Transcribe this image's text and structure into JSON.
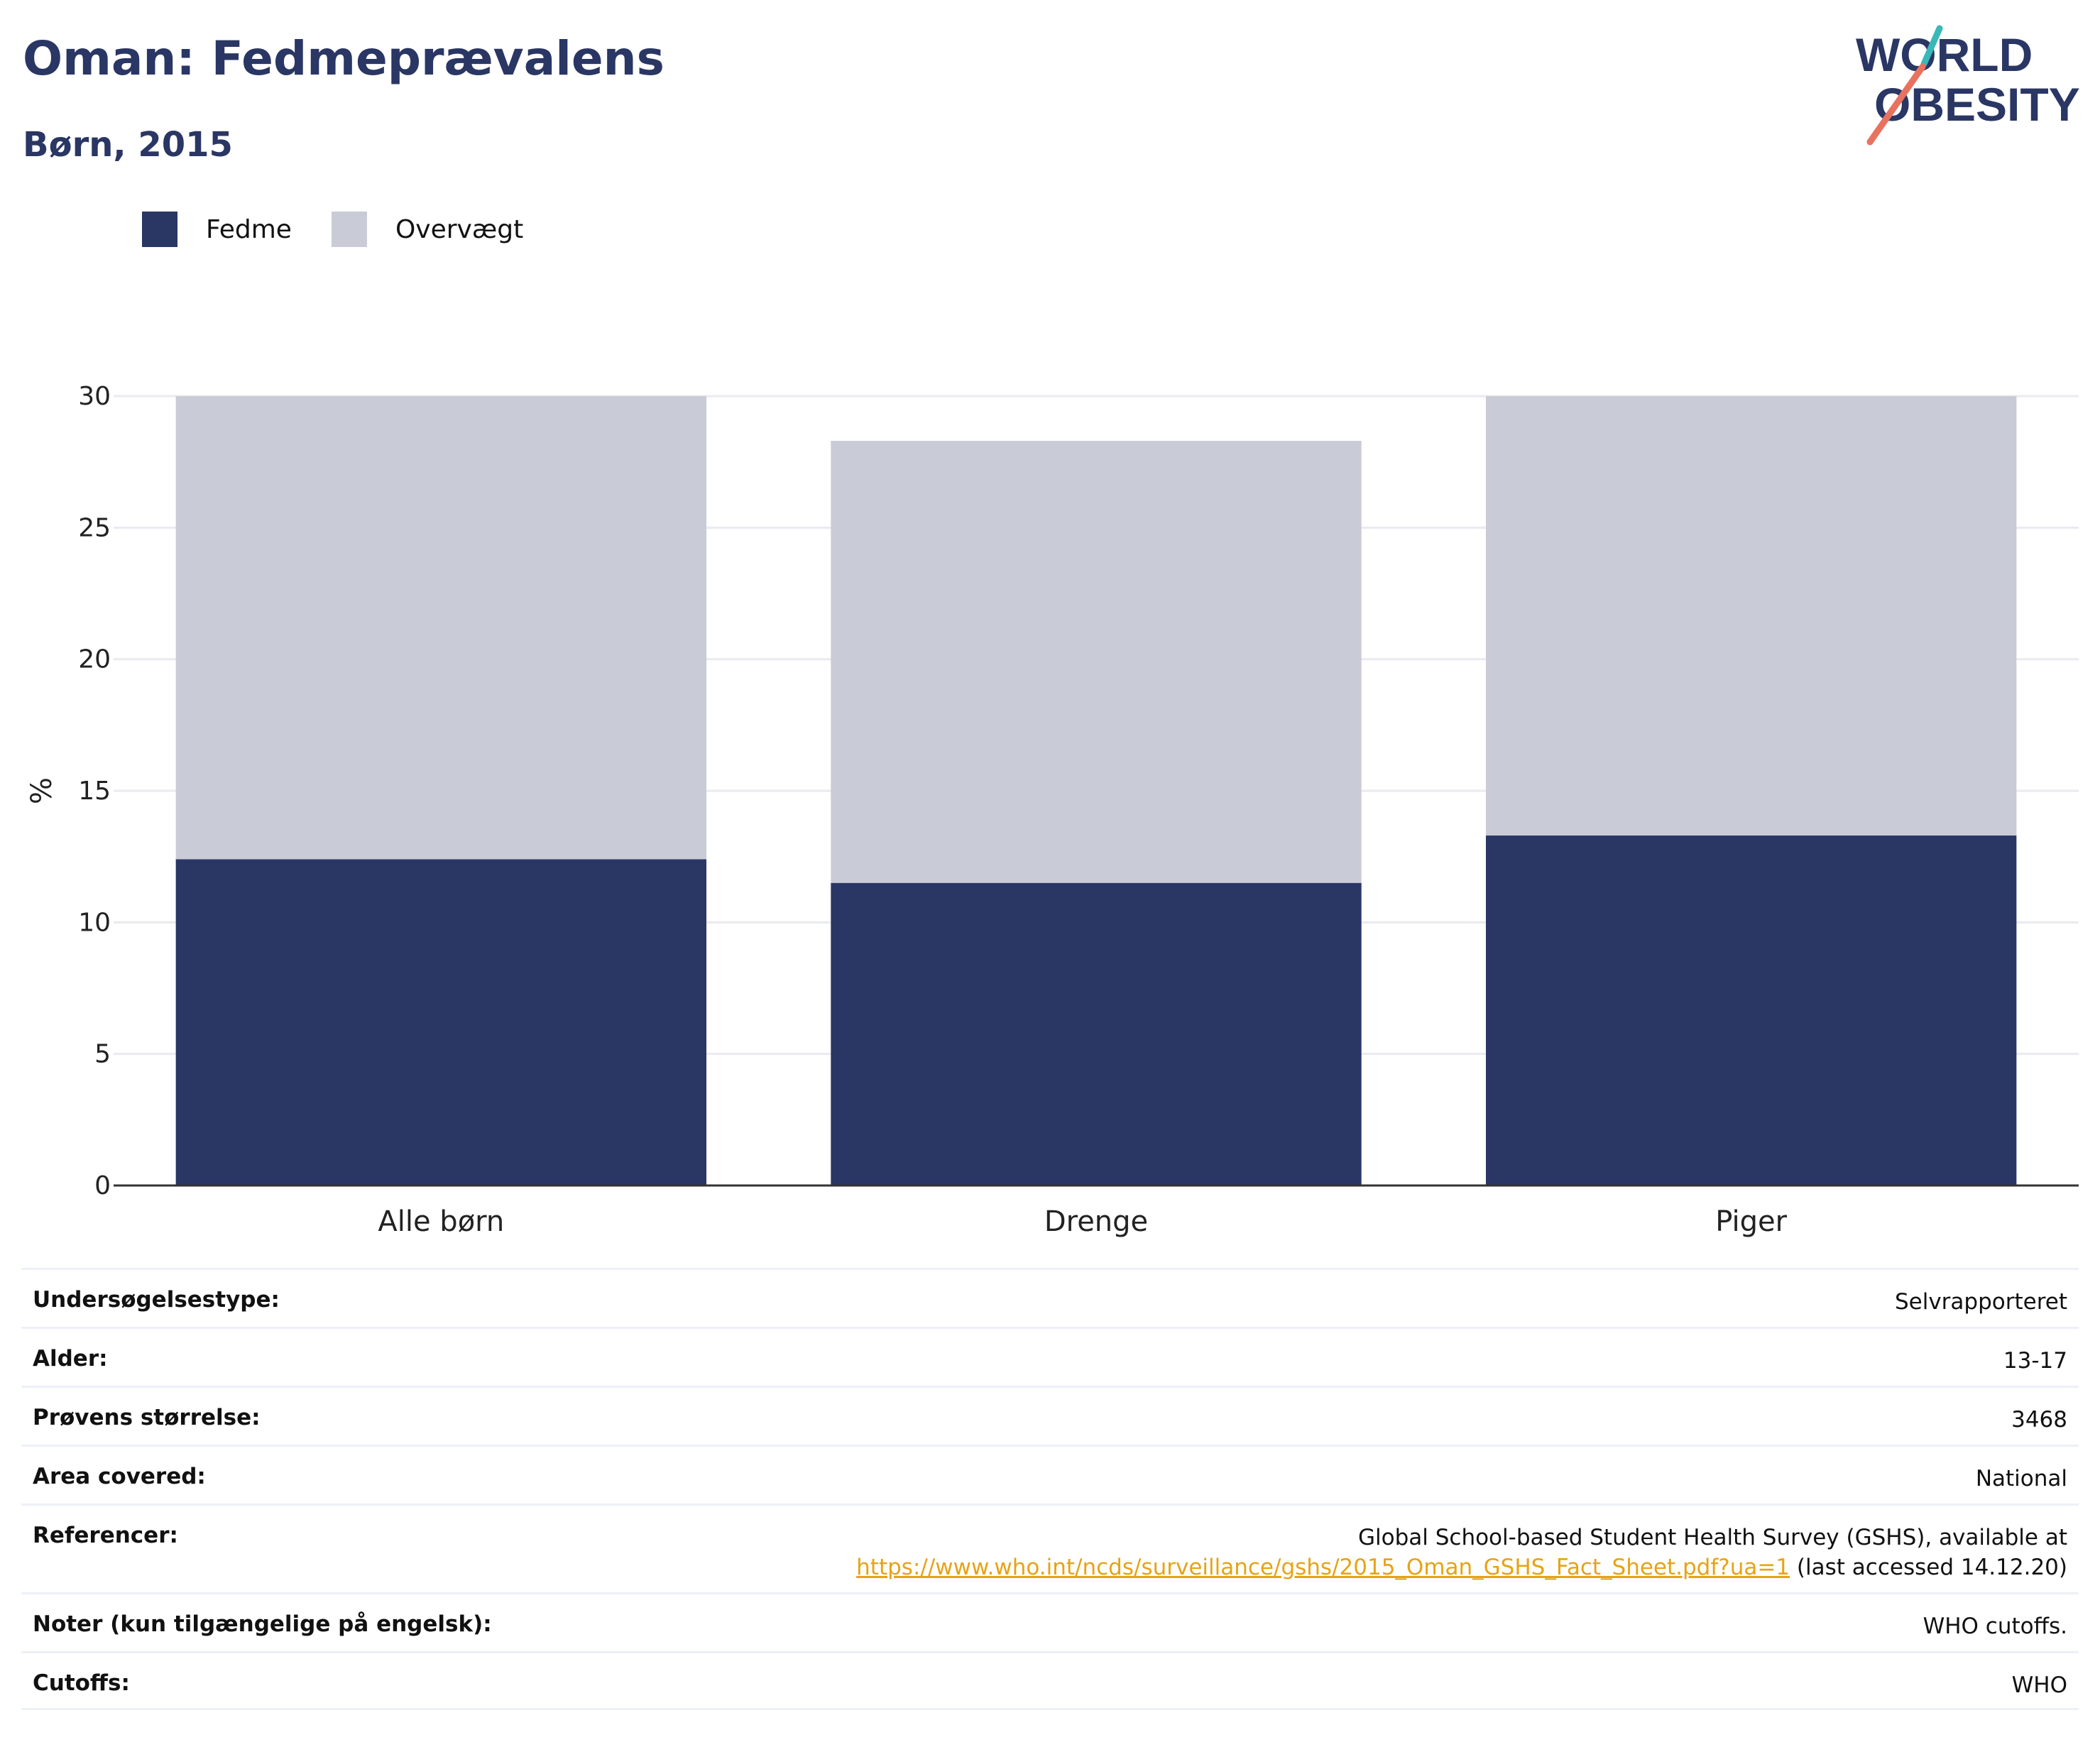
{
  "header": {
    "title": "Oman: Fedmeprævalens",
    "subtitle": "Børn, 2015",
    "logo_text_line1": "WORLD",
    "logo_text_line2": "OBESITY"
  },
  "colors": {
    "fedme": "#2a3664",
    "overvaegt": "#c9cbd6",
    "title": "#2a3664",
    "link": "#e6a317",
    "logo_teal": "#3ab8b8",
    "logo_coral": "#e8725f"
  },
  "legend": [
    {
      "label": "Fedme",
      "color": "#2a3664"
    },
    {
      "label": "Overvægt",
      "color": "#c9cbd6"
    }
  ],
  "chart_data": {
    "type": "bar",
    "stacked": true,
    "categories": [
      "Alle børn",
      "Drenge",
      "Piger"
    ],
    "series": [
      {
        "name": "Fedme",
        "values": [
          12.4,
          11.5,
          13.3
        ]
      },
      {
        "name": "Overvægt",
        "values": [
          17.6,
          16.8,
          16.7
        ]
      }
    ],
    "ylabel": "%",
    "ylim": [
      0,
      30
    ],
    "yticks": [
      0,
      5,
      10,
      15,
      20,
      25,
      30
    ],
    "grid": true,
    "legend_position": "top-left"
  },
  "info": {
    "survey_type": {
      "label": "Undersøgelsestype:",
      "value": "Selvrapporteret"
    },
    "age": {
      "label": "Alder:",
      "value": "13-17"
    },
    "sample_size": {
      "label": "Prøvens størrelse:",
      "value": "3468"
    },
    "area": {
      "label": "Area covered:",
      "value": "National"
    },
    "references": {
      "label": "Referencer:",
      "line1": "Global School-based Student Health Survey (GSHS), available at",
      "link": "https://www.who.int/ncds/surveillance/gshs/2015_Oman_GSHS_Fact_Sheet.pdf?ua=1",
      "suffix": " (last accessed 14.12.20)"
    },
    "notes": {
      "label": "Noter (kun tilgængelige på engelsk):",
      "value": "WHO cutoffs."
    },
    "cutoffs": {
      "label": "Cutoffs:",
      "value": "WHO"
    }
  }
}
